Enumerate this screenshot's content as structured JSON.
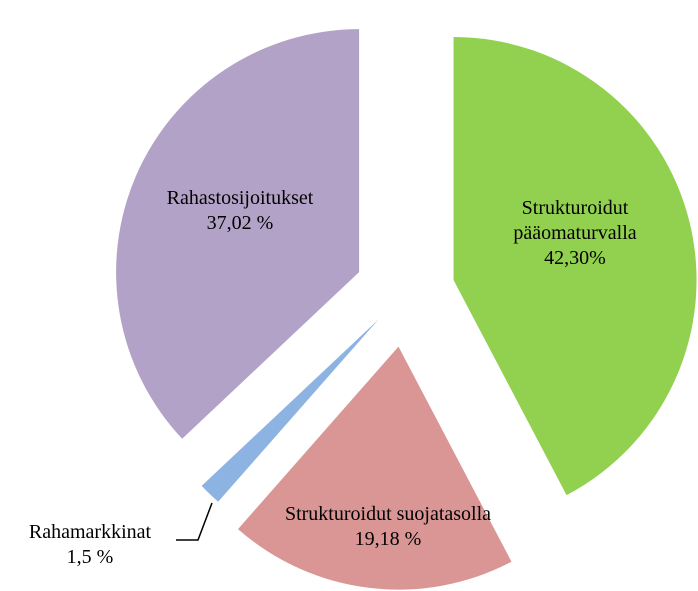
{
  "chart_data": {
    "type": "pie",
    "categories": [
      "Strukturoidut pääomaturvalla",
      "Strukturoidut suojatasolla",
      "Rahamarkkinat",
      "Rahastosijoitukset"
    ],
    "values": [
      42.3,
      19.18,
      1.5,
      37.02
    ],
    "value_labels": [
      "42,30%",
      "19,18 %",
      "1,5 %",
      "37,02 %"
    ],
    "colors": [
      "#92d050",
      "#d99694",
      "#8db3e2",
      "#b3a2c7"
    ]
  }
}
